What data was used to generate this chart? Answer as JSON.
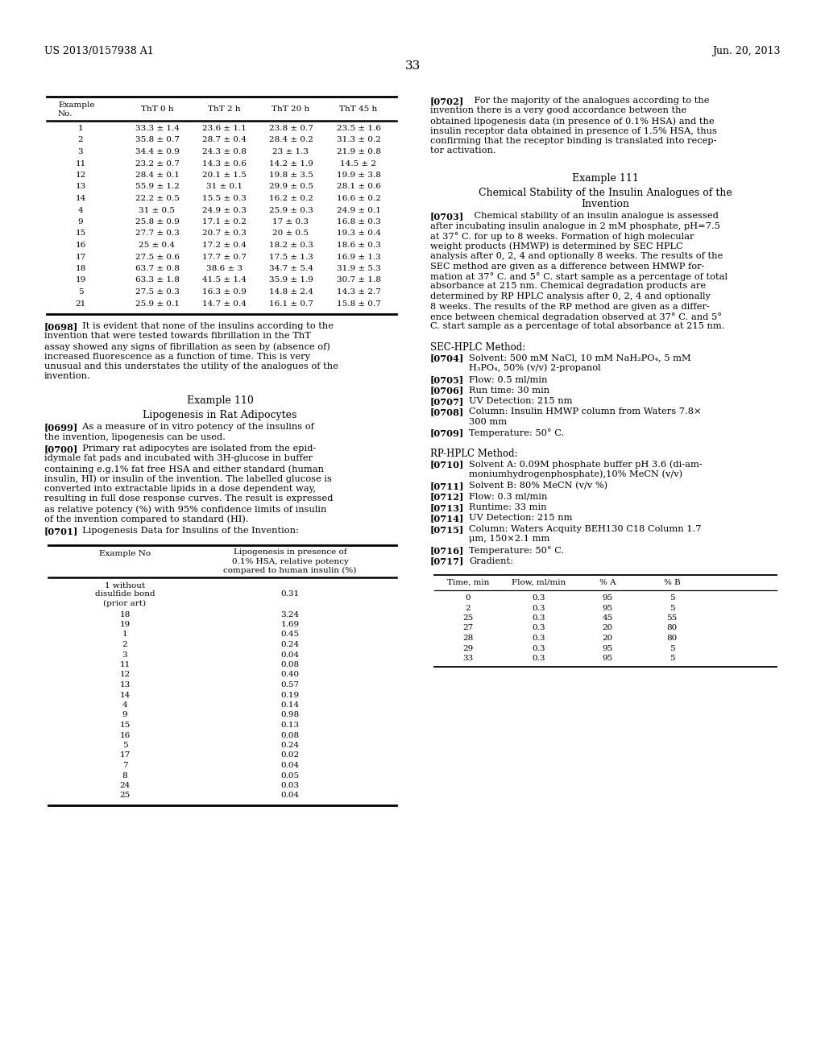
{
  "page_header_left": "US 2013/0157938 A1",
  "page_header_right": "Jun. 20, 2013",
  "page_number": "33",
  "table1_rows": [
    [
      "1",
      "33.3 ± 1.4",
      "23.6 ± 1.1",
      "23.8 ± 0.7",
      "23.5 ± 1.6"
    ],
    [
      "2",
      "35.8 ± 0.7",
      "28.7 ± 0.4",
      "28.4 ± 0.2",
      "31.3 ± 0.2"
    ],
    [
      "3",
      "34.4 ± 0.9",
      "24.3 ± 0.8",
      "23 ± 1.3",
      "21.9 ± 0.8"
    ],
    [
      "11",
      "23.2 ± 0.7",
      "14.3 ± 0.6",
      "14.2 ± 1.9",
      "14.5 ± 2"
    ],
    [
      "12",
      "28.4 ± 0.1",
      "20.1 ± 1.5",
      "19.8 ± 3.5",
      "19.9 ± 3.8"
    ],
    [
      "13",
      "55.9 ± 1.2",
      "31 ± 0.1",
      "29.9 ± 0.5",
      "28.1 ± 0.6"
    ],
    [
      "14",
      "22.2 ± 0.5",
      "15.5 ± 0.3",
      "16.2 ± 0.2",
      "16.6 ± 0.2"
    ],
    [
      "4",
      "31 ± 0.5",
      "24.9 ± 0.3",
      "25.9 ± 0.3",
      "24.9 ± 0.1"
    ],
    [
      "9",
      "25.8 ± 0.9",
      "17.1 ± 0.2",
      "17 ± 0.3",
      "16.8 ± 0.3"
    ],
    [
      "15",
      "27.7 ± 0.3",
      "20.7 ± 0.3",
      "20 ± 0.5",
      "19.3 ± 0.4"
    ],
    [
      "16",
      "25 ± 0.4",
      "17.2 ± 0.4",
      "18.2 ± 0.3",
      "18.6 ± 0.3"
    ],
    [
      "17",
      "27.5 ± 0.6",
      "17.7 ± 0.7",
      "17.5 ± 1.3",
      "16.9 ± 1.3"
    ],
    [
      "18",
      "63.7 ± 0.8",
      "38.6 ± 3",
      "34.7 ± 5.4",
      "31.9 ± 5.3"
    ],
    [
      "19",
      "63.3 ± 1.8",
      "41.5 ± 1.4",
      "35.9 ± 1.9",
      "30.7 ± 1.8"
    ],
    [
      "5",
      "27.5 ± 0.3",
      "16.3 ± 0.9",
      "14.8 ± 2.4",
      "14.3 ± 2.7"
    ],
    [
      "21",
      "25.9 ± 0.1",
      "14.7 ± 0.4",
      "16.1 ± 0.7",
      "15.8 ± 0.7"
    ]
  ],
  "table2_rows": [
    [
      "1 without\ndisulfide bond\n(prior art)",
      "0.31"
    ],
    [
      "18",
      "3.24"
    ],
    [
      "19",
      "1.69"
    ],
    [
      "1",
      "0.45"
    ],
    [
      "2",
      "0.24"
    ],
    [
      "3",
      "0.04"
    ],
    [
      "11",
      "0.08"
    ],
    [
      "12",
      "0.40"
    ],
    [
      "13",
      "0.57"
    ],
    [
      "14",
      "0.19"
    ],
    [
      "4",
      "0.14"
    ],
    [
      "9",
      "0.98"
    ],
    [
      "15",
      "0.13"
    ],
    [
      "16",
      "0.08"
    ],
    [
      "5",
      "0.24"
    ],
    [
      "17",
      "0.02"
    ],
    [
      "7",
      "0.04"
    ],
    [
      "8",
      "0.05"
    ],
    [
      "24",
      "0.03"
    ],
    [
      "25",
      "0.04"
    ]
  ],
  "gradient_table_rows": [
    [
      "0",
      "0.3",
      "95",
      "5"
    ],
    [
      "2",
      "0.3",
      "95",
      "5"
    ],
    [
      "25",
      "0.3",
      "45",
      "55"
    ],
    [
      "27",
      "0.3",
      "20",
      "80"
    ],
    [
      "28",
      "0.3",
      "20",
      "80"
    ],
    [
      "29",
      "0.3",
      "95",
      "5"
    ],
    [
      "33",
      "0.3",
      "95",
      "5"
    ]
  ]
}
